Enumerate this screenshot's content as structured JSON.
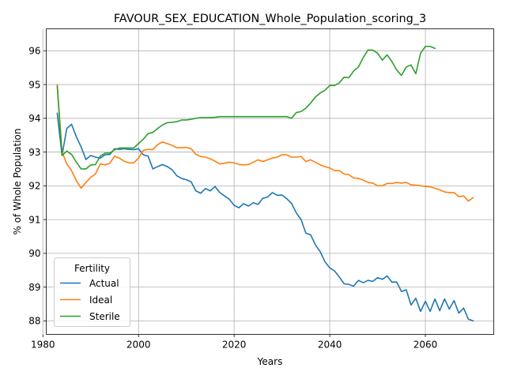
{
  "chart_data": {
    "type": "line",
    "title": "FAVOUR_SEX_EDUCATION_Whole_Population_scoring_3",
    "xlabel": "Years",
    "ylabel": "% of Whole Population",
    "xlim": [
      1980.7,
      2074.3
    ],
    "ylim": [
      87.6,
      96.65
    ],
    "x_ticks": [
      1980,
      2000,
      2020,
      2040,
      2060
    ],
    "y_ticks": [
      88,
      89,
      90,
      91,
      92,
      93,
      94,
      95,
      96
    ],
    "grid": true,
    "legend": {
      "title": "Fertility",
      "placement": "lower-left"
    },
    "series": [
      {
        "name": "Actual",
        "color": "#1f77b4",
        "x": [
          1983,
          1984,
          1985,
          1986,
          1987,
          1988,
          1989,
          1990,
          1991,
          1992,
          1993,
          1994,
          1995,
          1996,
          1997,
          1998,
          1999,
          2000,
          2001,
          2002,
          2003,
          2004,
          2005,
          2006,
          2007,
          2008,
          2009,
          2010,
          2011,
          2012,
          2013,
          2014,
          2015,
          2016,
          2017,
          2018,
          2019,
          2020,
          2021,
          2022,
          2023,
          2024,
          2025,
          2026,
          2027,
          2028,
          2029,
          2030,
          2031,
          2032,
          2033,
          2034,
          2035,
          2036,
          2037,
          2038,
          2039,
          2040,
          2041,
          2042,
          2043,
          2044,
          2045,
          2046,
          2047,
          2048,
          2049,
          2050,
          2051,
          2052,
          2053,
          2054,
          2055,
          2056,
          2057,
          2058,
          2059,
          2060,
          2061,
          2062,
          2063,
          2064,
          2065,
          2066,
          2067,
          2068,
          2069,
          2070
        ],
        "values": [
          94.15,
          92.9,
          93.7,
          93.82,
          93.45,
          93.15,
          92.78,
          92.9,
          92.85,
          92.82,
          92.92,
          92.93,
          93.1,
          93.08,
          93.1,
          93.08,
          93.07,
          93.1,
          92.92,
          92.88,
          92.5,
          92.57,
          92.63,
          92.57,
          92.48,
          92.3,
          92.22,
          92.18,
          92.12,
          91.85,
          91.78,
          91.92,
          91.85,
          91.98,
          91.8,
          91.7,
          91.6,
          91.42,
          91.35,
          91.47,
          91.4,
          91.5,
          91.45,
          91.63,
          91.67,
          91.8,
          91.72,
          91.73,
          91.62,
          91.48,
          91.2,
          91.0,
          90.6,
          90.55,
          90.25,
          90.05,
          89.75,
          89.57,
          89.48,
          89.3,
          89.1,
          89.08,
          89.03,
          89.2,
          89.13,
          89.2,
          89.17,
          89.28,
          89.23,
          89.33,
          89.15,
          89.15,
          88.87,
          88.92,
          88.47,
          88.67,
          88.28,
          88.58,
          88.28,
          88.65,
          88.3,
          88.65,
          88.35,
          88.6,
          88.23,
          88.38,
          88.05,
          88.0
        ]
      },
      {
        "name": "Ideal",
        "color": "#ff7f0e",
        "x": [
          1983,
          1984,
          1985,
          1986,
          1987,
          1988,
          1989,
          1990,
          1991,
          1992,
          1993,
          1994,
          1995,
          1996,
          1997,
          1998,
          1999,
          2000,
          2001,
          2002,
          2003,
          2004,
          2005,
          2006,
          2007,
          2008,
          2009,
          2010,
          2011,
          2012,
          2013,
          2014,
          2015,
          2016,
          2017,
          2018,
          2019,
          2020,
          2021,
          2022,
          2023,
          2024,
          2025,
          2026,
          2027,
          2028,
          2029,
          2030,
          2031,
          2032,
          2033,
          2034,
          2035,
          2036,
          2037,
          2038,
          2039,
          2040,
          2041,
          2042,
          2043,
          2044,
          2045,
          2046,
          2047,
          2048,
          2049,
          2050,
          2051,
          2052,
          2053,
          2054,
          2055,
          2056,
          2057,
          2058,
          2059,
          2060,
          2061,
          2062,
          2063,
          2064,
          2065,
          2066,
          2067,
          2068,
          2069,
          2070
        ],
        "values": [
          95.0,
          93.0,
          92.65,
          92.45,
          92.15,
          91.93,
          92.1,
          92.25,
          92.35,
          92.65,
          92.62,
          92.67,
          92.88,
          92.82,
          92.73,
          92.68,
          92.68,
          92.82,
          93.05,
          93.08,
          93.07,
          93.22,
          93.3,
          93.25,
          93.2,
          93.13,
          93.13,
          93.14,
          93.1,
          92.93,
          92.87,
          92.85,
          92.8,
          92.73,
          92.65,
          92.67,
          92.7,
          92.68,
          92.63,
          92.62,
          92.63,
          92.7,
          92.77,
          92.72,
          92.77,
          92.82,
          92.85,
          92.92,
          92.92,
          92.85,
          92.85,
          92.87,
          92.72,
          92.77,
          92.7,
          92.62,
          92.57,
          92.53,
          92.45,
          92.45,
          92.35,
          92.33,
          92.23,
          92.22,
          92.17,
          92.1,
          92.08,
          92.0,
          92.0,
          92.07,
          92.07,
          92.1,
          92.08,
          92.1,
          92.03,
          92.02,
          92.0,
          91.98,
          91.97,
          91.93,
          91.88,
          91.82,
          91.8,
          91.8,
          91.68,
          91.7,
          91.55,
          91.65
        ]
      },
      {
        "name": "Sterile",
        "color": "#2ca02c",
        "x": [
          1983,
          1984,
          1985,
          1986,
          1987,
          1988,
          1989,
          1990,
          1991,
          1992,
          1993,
          1994,
          1995,
          1996,
          1997,
          1998,
          1999,
          2000,
          2001,
          2002,
          2003,
          2004,
          2005,
          2006,
          2007,
          2008,
          2009,
          2010,
          2011,
          2012,
          2013,
          2014,
          2015,
          2016,
          2017,
          2018,
          2019,
          2020,
          2021,
          2022,
          2023,
          2024,
          2025,
          2026,
          2027,
          2028,
          2029,
          2030,
          2031,
          2032,
          2033,
          2034,
          2035,
          2036,
          2037,
          2038,
          2039,
          2040,
          2041,
          2042,
          2043,
          2044,
          2045,
          2046,
          2047,
          2048,
          2049,
          2050,
          2051,
          2052,
          2053,
          2054,
          2055,
          2056,
          2057,
          2058,
          2059,
          2060,
          2061,
          2062
        ],
        "values": [
          94.95,
          92.9,
          93.03,
          92.93,
          92.7,
          92.5,
          92.5,
          92.62,
          92.63,
          92.88,
          92.97,
          92.97,
          93.07,
          93.12,
          93.12,
          93.12,
          93.12,
          93.25,
          93.38,
          93.55,
          93.58,
          93.7,
          93.8,
          93.87,
          93.88,
          93.9,
          93.95,
          93.95,
          93.97,
          94.0,
          94.02,
          94.02,
          94.02,
          94.03,
          94.05,
          94.05,
          94.05,
          94.05,
          94.05,
          94.05,
          94.05,
          94.05,
          94.05,
          94.05,
          94.05,
          94.05,
          94.05,
          94.05,
          94.05,
          94.0,
          94.17,
          94.2,
          94.3,
          94.45,
          94.63,
          94.75,
          94.83,
          94.97,
          94.97,
          95.05,
          95.22,
          95.2,
          95.4,
          95.52,
          95.8,
          96.02,
          96.02,
          95.93,
          95.72,
          95.88,
          95.68,
          95.43,
          95.27,
          95.52,
          95.58,
          95.32,
          95.93,
          96.13,
          96.13,
          96.07
        ]
      }
    ]
  }
}
